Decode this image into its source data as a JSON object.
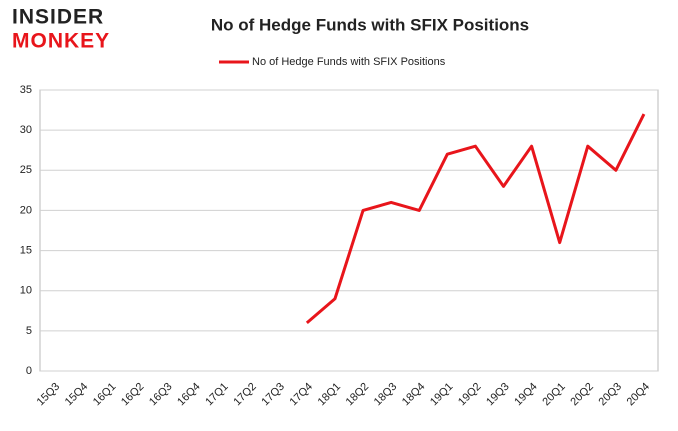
{
  "logo": {
    "line1": "INSIDER",
    "line2": "MONKEY"
  },
  "chart_data": {
    "type": "line",
    "title": "No of Hedge Funds with SFIX Positions",
    "categories": [
      "15Q3",
      "15Q4",
      "16Q1",
      "16Q2",
      "16Q3",
      "16Q4",
      "17Q1",
      "17Q2",
      "17Q3",
      "17Q4",
      "18Q1",
      "18Q2",
      "18Q3",
      "18Q4",
      "19Q1",
      "19Q2",
      "19Q3",
      "19Q4",
      "20Q1",
      "20Q2",
      "20Q3",
      "20Q4"
    ],
    "series": [
      {
        "name": "No of Hedge Funds with SFIX Positions",
        "color": "#e8151b",
        "values": [
          null,
          null,
          null,
          null,
          null,
          null,
          null,
          null,
          null,
          6,
          9,
          20,
          21,
          20,
          27,
          28,
          23,
          28,
          16,
          28,
          25,
          32
        ]
      }
    ],
    "ylim": [
      0,
      35
    ],
    "yticks": [
      0,
      5,
      10,
      15,
      20,
      25,
      30,
      35
    ],
    "grid": true,
    "legend": "top"
  }
}
